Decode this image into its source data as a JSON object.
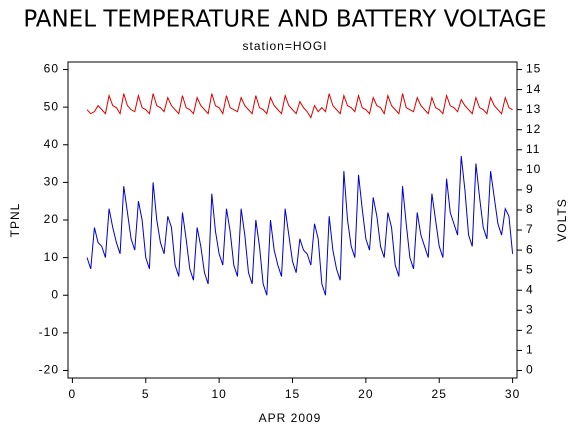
{
  "chart_data": {
    "type": "line",
    "title": "PANEL TEMPERATURE AND BATTERY VOLTAGE",
    "subtitle": "station=HOGI",
    "xlabel": "APR 2009",
    "ylabel": "TPNL",
    "y2label": "VOLTS",
    "xlim": [
      -0.3,
      30.3
    ],
    "xticks": [
      0,
      5,
      10,
      15,
      20,
      25,
      30
    ],
    "ylim": [
      -22,
      62
    ],
    "yticks": [
      -20,
      -10,
      0,
      10,
      20,
      30,
      40,
      50,
      60
    ],
    "y2lim": [
      -0.375,
      15.375
    ],
    "y2ticks": [
      0,
      1,
      2,
      3,
      4,
      5,
      6,
      7,
      8,
      9,
      10,
      11,
      12,
      13,
      14,
      15
    ],
    "x": [
      1,
      1.25,
      1.5,
      1.75,
      2,
      2.25,
      2.5,
      2.75,
      3,
      3.25,
      3.5,
      3.75,
      4,
      4.25,
      4.5,
      4.75,
      5,
      5.25,
      5.5,
      5.75,
      6,
      6.25,
      6.5,
      6.75,
      7,
      7.25,
      7.5,
      7.75,
      8,
      8.25,
      8.5,
      8.75,
      9,
      9.25,
      9.5,
      9.75,
      10,
      10.25,
      10.5,
      10.75,
      11,
      11.25,
      11.5,
      11.75,
      12,
      12.25,
      12.5,
      12.75,
      13,
      13.25,
      13.5,
      13.75,
      14,
      14.25,
      14.5,
      14.75,
      15,
      15.25,
      15.5,
      15.75,
      16,
      16.25,
      16.5,
      16.75,
      17,
      17.25,
      17.5,
      17.75,
      18,
      18.25,
      18.5,
      18.75,
      19,
      19.25,
      19.5,
      19.75,
      20,
      20.25,
      20.5,
      20.75,
      21,
      21.25,
      21.5,
      21.75,
      22,
      22.25,
      22.5,
      22.75,
      23,
      23.25,
      23.5,
      23.75,
      24,
      24.25,
      24.5,
      24.75,
      25,
      25.25,
      25.5,
      25.75,
      26,
      26.25,
      26.5,
      26.75,
      27,
      27.25,
      27.5,
      27.75,
      28,
      28.25,
      28.5,
      28.75,
      29,
      29.25,
      29.5,
      29.75,
      30
    ],
    "series": [
      {
        "name": "TPNL",
        "color": "#0000cc",
        "values": [
          10,
          7,
          18,
          14,
          13,
          10,
          23,
          18,
          14,
          11,
          29,
          22,
          15,
          12,
          25,
          20,
          10,
          7,
          30,
          20,
          14,
          11,
          21,
          18,
          8,
          5,
          22,
          15,
          7,
          4,
          18,
          13,
          6,
          3,
          27,
          17,
          11,
          8,
          23,
          17,
          8,
          5,
          23,
          16,
          6,
          3,
          20,
          13,
          3,
          0,
          20,
          12,
          8,
          5,
          23,
          16,
          9,
          6,
          15,
          12,
          11,
          8,
          19,
          15,
          3,
          0,
          21,
          12,
          7,
          4,
          33,
          20,
          13,
          10,
          32,
          23,
          15,
          12,
          26,
          21,
          13,
          10,
          22,
          18,
          8,
          5,
          29,
          19,
          10,
          7,
          22,
          16,
          13,
          10,
          27,
          20,
          13,
          10,
          31,
          22,
          19,
          16,
          37,
          28,
          16,
          13,
          35,
          26,
          18,
          15,
          33,
          26,
          19,
          16,
          23,
          21,
          11
        ]
      },
      {
        "name": "VOLTS",
        "color": "#dd0000",
        "axis": "y2",
        "values": [
          13.0,
          12.8,
          12.9,
          13.2,
          13.0,
          12.8,
          13.7,
          13.2,
          13.1,
          12.8,
          13.8,
          13.2,
          13.0,
          12.9,
          13.7,
          13.1,
          13.0,
          12.8,
          13.8,
          13.2,
          13.1,
          12.9,
          13.6,
          13.2,
          13.0,
          12.8,
          13.7,
          13.1,
          13.0,
          12.8,
          13.6,
          13.2,
          13.0,
          12.8,
          13.8,
          13.2,
          13.1,
          12.8,
          13.7,
          13.1,
          13.0,
          12.9,
          13.6,
          13.2,
          13.0,
          12.8,
          13.7,
          13.1,
          13.0,
          12.8,
          13.6,
          13.2,
          13.0,
          12.8,
          13.7,
          13.2,
          13.0,
          12.8,
          13.4,
          13.1,
          12.9,
          12.6,
          13.2,
          12.9,
          13.1,
          12.9,
          13.8,
          13.2,
          13.0,
          12.8,
          13.7,
          13.2,
          13.1,
          12.9,
          13.7,
          13.1,
          13.0,
          12.8,
          13.6,
          13.2,
          13.1,
          12.8,
          13.7,
          13.2,
          13.0,
          12.8,
          13.8,
          13.1,
          13.0,
          12.9,
          13.6,
          13.2,
          13.0,
          12.8,
          13.6,
          13.1,
          13.0,
          12.8,
          13.7,
          13.2,
          13.1,
          12.9,
          13.5,
          13.2,
          13.0,
          12.8,
          13.6,
          13.1,
          13.0,
          12.8,
          13.6,
          13.2,
          13.0,
          12.8,
          13.6,
          13.1,
          13.0
        ]
      }
    ]
  }
}
